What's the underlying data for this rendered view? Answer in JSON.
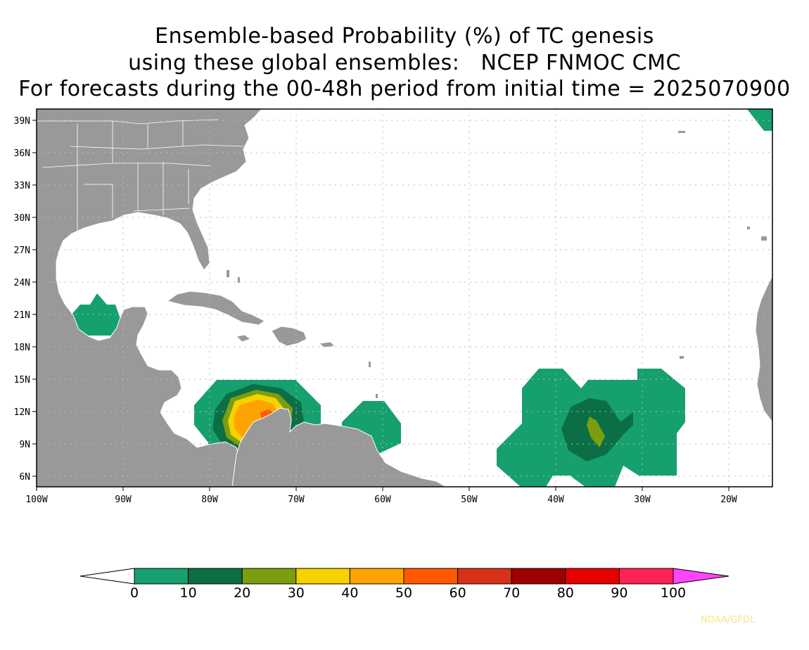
{
  "title": {
    "line1": "Ensemble-based Probability (%) of TC genesis",
    "line2": "using these global ensembles:   NCEP FNMOC CMC",
    "line3": "For forecasts during the 00-48h period from initial time = 2025070900"
  },
  "map": {
    "lon_range": [
      -100,
      -15
    ],
    "lat_range": [
      5,
      40
    ],
    "lat_ticks": [
      "39N",
      "36N",
      "33N",
      "30N",
      "27N",
      "24N",
      "21N",
      "18N",
      "15N",
      "12N",
      "9N",
      "6N"
    ],
    "lon_ticks": [
      "100W",
      "90W",
      "80W",
      "70W",
      "60W",
      "50W",
      "40W",
      "30W",
      "20W"
    ],
    "land_color": "#999999",
    "ocean_color": "#ffffff"
  },
  "colorbar": {
    "labels": [
      "0",
      "10",
      "20",
      "30",
      "40",
      "50",
      "60",
      "70",
      "80",
      "90",
      "100"
    ],
    "colors": [
      "#16a06e",
      "#0c6e44",
      "#7a9e10",
      "#f5d200",
      "#ffa300",
      "#ff5a00",
      "#d6321a",
      "#9e0000",
      "#e60000",
      "#ff2255"
    ],
    "under_color": "#ffffff",
    "over_color": "#ff44ff"
  },
  "credit": "NOAA/GFDL"
}
